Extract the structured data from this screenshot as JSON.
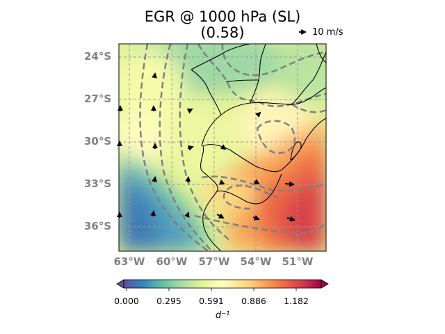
{
  "title": {
    "line1": "EGR @ 1000 hPa (SL)",
    "line2": "(0.58)"
  },
  "map": {
    "lat_ticks": [
      "24°S",
      "27°S",
      "30°S",
      "33°S",
      "36°S"
    ],
    "lon_ticks": [
      "63°W",
      "60°W",
      "57°W",
      "54°W",
      "51°W"
    ],
    "lon_range": [
      -64,
      -49.5
    ],
    "lat_range": [
      -38.8,
      -24.1
    ],
    "gridlines": true,
    "contour_style": "gray-dashed",
    "colormap": "Spectral_r"
  },
  "quiver_key": {
    "label": "10 m/s"
  },
  "colorbar": {
    "ticks": [
      "0.000",
      "0.295",
      "0.591",
      "0.886",
      "1.182"
    ],
    "label": "d⁻¹",
    "extend": "both",
    "colors": [
      "#5e4fa2",
      "#3288bd",
      "#66c2a5",
      "#abdda4",
      "#e6f598",
      "#ffffbf",
      "#fee08b",
      "#fdae61",
      "#f46d43",
      "#d53e4f",
      "#9e0142"
    ]
  }
}
